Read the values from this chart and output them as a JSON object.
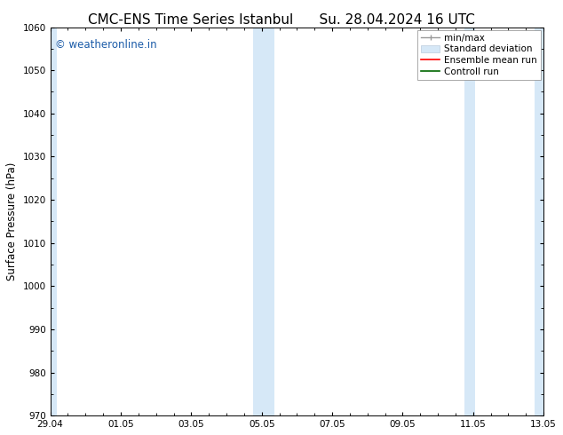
{
  "title_left": "CMC-ENS Time Series Istanbul",
  "title_right": "Su. 28.04.2024 16 UTC",
  "ylabel": "Surface Pressure (hPa)",
  "ylim": [
    970,
    1060
  ],
  "yticks": [
    970,
    980,
    990,
    1000,
    1010,
    1020,
    1030,
    1040,
    1050,
    1060
  ],
  "x_tick_labels": [
    "29.04",
    "01.05",
    "03.05",
    "05.05",
    "07.05",
    "09.05",
    "11.05",
    "13.05"
  ],
  "x_tick_positions": [
    0,
    2,
    4,
    6,
    8,
    10,
    12,
    14
  ],
  "xlim": [
    0,
    14
  ],
  "shaded_bands": [
    {
      "x_start": -0.15,
      "x_end": 0.15,
      "color": "#dce8f5"
    },
    {
      "x_start": 5.85,
      "x_end": 6.15,
      "color": "#dce8f5"
    },
    {
      "x_start": 6.15,
      "x_end": 6.45,
      "color": "#dce8f5"
    },
    {
      "x_start": 11.85,
      "x_end": 12.15,
      "color": "#dce8f5"
    },
    {
      "x_start": 13.85,
      "x_end": 14.15,
      "color": "#dce8f5"
    }
  ],
  "watermark_text": "© weatheronline.in",
  "watermark_color": "#1a5ba8",
  "watermark_fontsize": 8.5,
  "bg_color": "#ffffff",
  "plot_bg_color": "#ffffff",
  "title_fontsize": 11,
  "tick_fontsize": 7.5,
  "ylabel_fontsize": 8.5,
  "legend_fontsize": 7.5
}
